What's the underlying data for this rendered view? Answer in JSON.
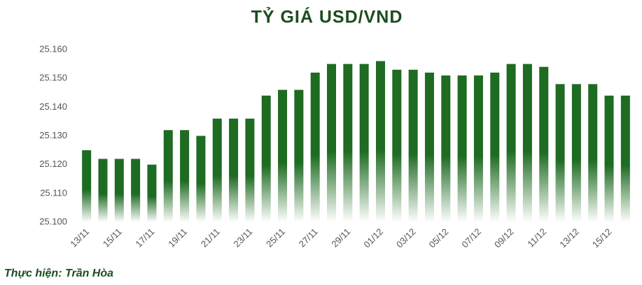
{
  "chart_data": {
    "type": "bar",
    "title": "TỶ GIÁ USD/VND",
    "footer": "Thực hiện: Trần Hòa",
    "categories": [
      "13/11",
      null,
      "15/11",
      null,
      "17/11",
      null,
      "19/11",
      null,
      "21/11",
      null,
      "23/11",
      null,
      "25/11",
      null,
      "27/11",
      null,
      "29/11",
      null,
      "01/12",
      null,
      "03/12",
      null,
      "05/12",
      null,
      "07/12",
      null,
      "09/12",
      null,
      "11/12",
      null,
      "13/12",
      null,
      "15/12",
      null
    ],
    "values": [
      25125,
      25122,
      25122,
      25122,
      25120,
      25132,
      25132,
      25130,
      25136,
      25136,
      25136,
      25144,
      25146,
      25146,
      25152,
      25155,
      25155,
      25155,
      25156,
      25153,
      25153,
      25152,
      25151,
      25151,
      25151,
      25152,
      25155,
      25155,
      25154,
      25148,
      25148,
      25148,
      25144,
      25144
    ],
    "color": "#1e6b22",
    "ylim": [
      25100,
      25160
    ],
    "yticks": [
      {
        "value": 25100,
        "label": "25.100"
      },
      {
        "value": 25110,
        "label": "25.110"
      },
      {
        "value": 25120,
        "label": "25.120"
      },
      {
        "value": 25130,
        "label": "25.130"
      },
      {
        "value": 25140,
        "label": "25.140"
      },
      {
        "value": 25150,
        "label": "25.150"
      },
      {
        "value": 25160,
        "label": "25.160"
      }
    ],
    "grid": false
  }
}
